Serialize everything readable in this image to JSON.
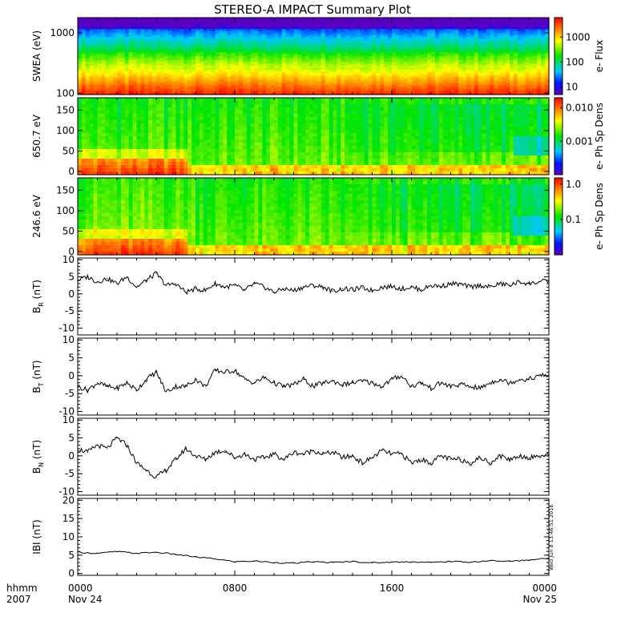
{
  "chart_data": {
    "title": "STEREO-A IMPACT Summary Plot",
    "x_axis": {
      "corner_labels": [
        "hhmm",
        "2007"
      ],
      "ticks": [
        {
          "label": "0000",
          "sublabel": "Nov 24",
          "hour": 0
        },
        {
          "label": "0800",
          "sublabel": "",
          "hour": 8
        },
        {
          "label": "1600",
          "sublabel": "",
          "hour": 16
        },
        {
          "label": "0000",
          "sublabel": "Nov 25",
          "hour": 24
        }
      ],
      "range_hours": [
        0,
        24
      ]
    },
    "timestamp": "Wed Jun 8 13:46:51 2016",
    "panels": [
      {
        "type": "heatmap",
        "ylabel": "SWEA (eV)",
        "ylog": true,
        "ylim": [
          95,
          1800
        ],
        "yticks": [
          {
            "v": 100,
            "label": "100"
          },
          {
            "v": 1000,
            "label": "1000"
          }
        ],
        "colorbar_label": "e- Flux",
        "colorbar_log": true,
        "colorbar_range": [
          5,
          6000
        ],
        "colorbar_ticks": [
          {
            "v": 10,
            "label": "10"
          },
          {
            "v": 100,
            "label": "100"
          },
          {
            "v": 1000,
            "label": "1000"
          }
        ]
      },
      {
        "type": "heatmap",
        "ylabel": "650.7 eV",
        "ylog": false,
        "ylim": [
          -8,
          180
        ],
        "yticks": [
          {
            "v": 0,
            "label": "0"
          },
          {
            "v": 50,
            "label": "50"
          },
          {
            "v": 100,
            "label": "100"
          },
          {
            "v": 150,
            "label": "150"
          }
        ],
        "colorbar_label": "e- Ph Sp Dens",
        "colorbar_log": true,
        "colorbar_range": [
          0.0001,
          0.02
        ],
        "colorbar_ticks": [
          {
            "v": 0.001,
            "label": "0.001"
          },
          {
            "v": 0.01,
            "label": "0.010"
          }
        ]
      },
      {
        "type": "heatmap",
        "ylabel": "246.6 eV",
        "ylog": false,
        "ylim": [
          -8,
          180
        ],
        "yticks": [
          {
            "v": 0,
            "label": "0"
          },
          {
            "v": 50,
            "label": "50"
          },
          {
            "v": 100,
            "label": "100"
          },
          {
            "v": 150,
            "label": "150"
          }
        ],
        "colorbar_label": "e- Ph Sp Dens",
        "colorbar_log": true,
        "colorbar_range": [
          0.01,
          1.5
        ],
        "colorbar_ticks": [
          {
            "v": 0.1,
            "label": "0.1"
          },
          {
            "v": 1.0,
            "label": "1.0"
          }
        ]
      },
      {
        "type": "line",
        "ylabel": "B_R (nT)",
        "ylabel_main": "B",
        "ylabel_sub": "R",
        "ylabel_unit": "(nT)",
        "ylim": [
          -12,
          10.5
        ],
        "yticks": [
          -10,
          -5,
          0,
          5,
          10
        ],
        "x_hours": [
          0,
          0.5,
          1,
          1.5,
          2,
          2.5,
          3,
          3.5,
          4,
          4.5,
          5,
          5.5,
          6,
          6.5,
          7,
          7.5,
          8,
          8.5,
          9,
          9.5,
          10,
          10.5,
          11,
          11.5,
          12,
          12.5,
          13,
          13.5,
          14,
          14.5,
          15,
          15.5,
          16,
          16.5,
          17,
          17.5,
          18,
          18.5,
          19,
          19.5,
          20,
          20.5,
          21,
          21.5,
          22,
          22.5,
          23,
          23.5,
          24
        ],
        "values": [
          4,
          5,
          3.5,
          4.5,
          3,
          5,
          2,
          4,
          6,
          2.5,
          3,
          0.5,
          1.5,
          1,
          3,
          2,
          2.5,
          1,
          3,
          2,
          0.5,
          1.5,
          1,
          2,
          2.5,
          2,
          0.8,
          1.5,
          1.2,
          1.8,
          1,
          2,
          2.2,
          1.5,
          2,
          1.2,
          2.5,
          2.2,
          3,
          2.8,
          2,
          2.5,
          2,
          3,
          2.5,
          3.5,
          3,
          3.5,
          3.8
        ]
      },
      {
        "type": "line",
        "ylabel": "B_T (nT)",
        "ylabel_main": "B",
        "ylabel_sub": "T",
        "ylabel_unit": "(nT)",
        "ylim": [
          -11,
          10.5
        ],
        "yticks": [
          -10,
          -5,
          0,
          5,
          10
        ],
        "x_hours": [
          0,
          0.5,
          1,
          1.5,
          2,
          2.5,
          3,
          3.5,
          4,
          4.5,
          5,
          5.5,
          6,
          6.5,
          7,
          7.5,
          8,
          8.5,
          9,
          9.5,
          10,
          10.5,
          11,
          11.5,
          12,
          12.5,
          13,
          13.5,
          14,
          14.5,
          15,
          15.5,
          16,
          16.5,
          17,
          17.5,
          18,
          18.5,
          19,
          19.5,
          20,
          20.5,
          21,
          21.5,
          22,
          22.5,
          23,
          23.5,
          24
        ],
        "values": [
          -3,
          -4,
          -2,
          -3,
          -3.5,
          -2,
          -4,
          -1,
          1,
          -4.5,
          -3,
          -3,
          -1,
          -3,
          1.5,
          1,
          1.5,
          -1,
          -2,
          -0.5,
          -2,
          -3,
          -2.5,
          -1,
          -3,
          -2,
          -1.5,
          -2.5,
          -2,
          -1.5,
          -2,
          -3,
          -1,
          0,
          -3,
          -2,
          -3.5,
          -2,
          -3,
          -2.5,
          -3,
          -3.5,
          -2,
          -1,
          -2,
          -1,
          -1,
          0,
          0
        ]
      },
      {
        "type": "line",
        "ylabel": "B_N (nT)",
        "ylabel_main": "B",
        "ylabel_sub": "N",
        "ylabel_unit": "(nT)",
        "ylim": [
          -11,
          10.5
        ],
        "yticks": [
          -10,
          -5,
          0,
          5,
          10
        ],
        "x_hours": [
          0,
          0.5,
          1,
          1.5,
          2,
          2.5,
          3,
          3.5,
          4,
          4.5,
          5,
          5.5,
          6,
          6.5,
          7,
          7.5,
          8,
          8.5,
          9,
          9.5,
          10,
          10.5,
          11,
          11.5,
          12,
          12.5,
          13,
          13.5,
          14,
          14.5,
          15,
          15.5,
          16,
          16.5,
          17,
          17.5,
          18,
          18.5,
          19,
          19.5,
          20,
          20.5,
          21,
          21.5,
          22,
          22.5,
          23,
          23.5,
          24
        ],
        "values": [
          2,
          1,
          3,
          2,
          5,
          3,
          -2,
          -4,
          -6,
          -4,
          -1,
          2,
          0,
          -1,
          1,
          1.5,
          -0.5,
          0.5,
          -1,
          -0.5,
          0.5,
          -1,
          1,
          0.5,
          1.5,
          0.5,
          1,
          -0.5,
          0,
          -2,
          -0.5,
          1.5,
          0.5,
          0.5,
          -2,
          -1,
          -2,
          0,
          -1,
          -1,
          -2,
          -0.5,
          -2,
          0,
          -1,
          0,
          -0.5,
          0,
          0
        ]
      },
      {
        "type": "line",
        "ylabel": "|B| (nT)",
        "ylabel_main": "IBI",
        "ylabel_sub": "",
        "ylabel_unit": "(nT)",
        "ylim": [
          -0.5,
          20.5
        ],
        "yticks": [
          0,
          5,
          10,
          15,
          20
        ],
        "x_hours": [
          0,
          1,
          2,
          3,
          4,
          5,
          6,
          7,
          8,
          9,
          10,
          11,
          12,
          13,
          14,
          15,
          16,
          17,
          18,
          19,
          20,
          21,
          22,
          23,
          24
        ],
        "values": [
          5.8,
          5.5,
          6,
          5.5,
          5.8,
          5.2,
          4.5,
          4,
          3.2,
          3.4,
          3,
          2.8,
          3.2,
          3,
          3.3,
          2.9,
          3.1,
          3.2,
          3,
          3.3,
          3.1,
          3.5,
          3.3,
          3.7,
          4.2
        ]
      }
    ]
  }
}
